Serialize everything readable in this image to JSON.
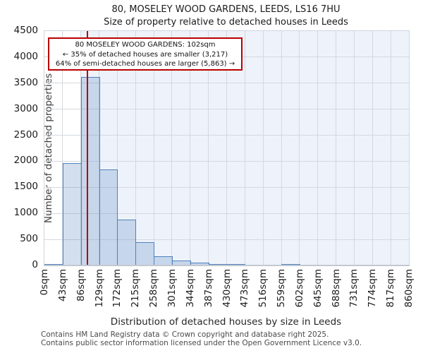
{
  "title": "80, MOSELEY WOOD GARDENS, LEEDS, LS16 7HU",
  "subtitle": "Size of property relative to detached houses in Leeds",
  "annotation": {
    "line1": "80 MOSELEY WOOD GARDENS: 102sqm",
    "line2": "← 35% of detached houses are smaller (3,217)",
    "line3": "64% of semi-detached houses are larger (5,863) →"
  },
  "footer": {
    "line1": "Contains HM Land Registry data © Crown copyright and database right 2025.",
    "line2": "Contains public sector information licensed under the Open Government Licence v3.0."
  },
  "chart_data": {
    "type": "bar",
    "title": "80, MOSELEY WOOD GARDENS, LEEDS, LS16 7HU — Size of property relative to detached houses in Leeds",
    "xlabel": "Distribution of detached houses by size in Leeds",
    "ylabel": "Number of detached properties",
    "categories": [
      "0sqm",
      "43sqm",
      "86sqm",
      "129sqm",
      "172sqm",
      "215sqm",
      "258sqm",
      "301sqm",
      "344sqm",
      "387sqm",
      "430sqm",
      "473sqm",
      "516sqm",
      "559sqm",
      "602sqm",
      "645sqm",
      "688sqm",
      "731sqm",
      "774sqm",
      "817sqm",
      "860sqm"
    ],
    "bin_width_sqm": 43,
    "values": [
      15,
      1970,
      3620,
      1850,
      880,
      445,
      175,
      95,
      50,
      30,
      18,
      0,
      0,
      15,
      0,
      0,
      0,
      0,
      0,
      0
    ],
    "xlim": [
      0,
      860
    ],
    "ylim": [
      0,
      4500
    ],
    "yticks": [
      0,
      500,
      1000,
      1500,
      2000,
      2500,
      3000,
      3500,
      4000,
      4500
    ],
    "grid": "on",
    "legend": "none",
    "marker_value_sqm": 102,
    "shaded_region_sqm": [
      86,
      860
    ],
    "colors": {
      "bar_fill": "rgba(79,129,189,0.25)",
      "bar_edge": "#4f81bd",
      "marker_line": "#b30000",
      "annotation_border": "#bb0000",
      "shaded_background": "#eef3fb",
      "gridline": "#d4d8de"
    }
  }
}
